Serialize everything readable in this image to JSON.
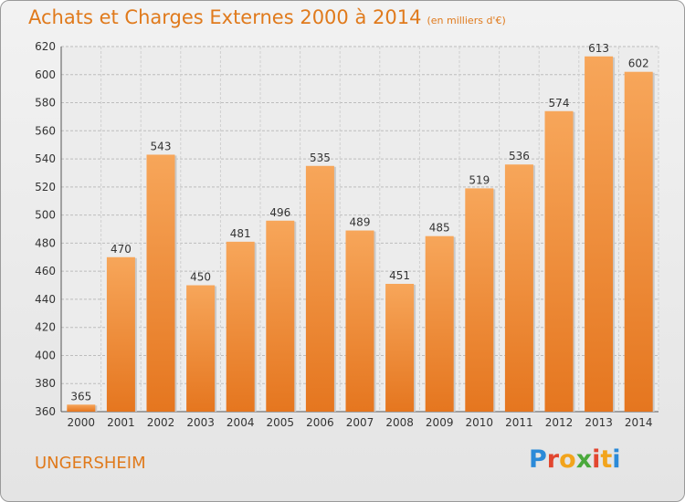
{
  "header": {
    "title": "Achats et Charges Externes 2000 à 2014",
    "subtitle": "(en milliers d'€)"
  },
  "footer": {
    "commune": "UNGERSHEIM",
    "brand_letters": [
      "P",
      "r",
      "o",
      "x",
      "i",
      "t",
      "i"
    ],
    "brand_colors": [
      "#2b8ad8",
      "#e2462f",
      "#f2a41c",
      "#4aa93c",
      "#e2462f",
      "#f2a41c",
      "#2b8ad8"
    ]
  },
  "chart_data": {
    "type": "bar",
    "categories": [
      "2000",
      "2001",
      "2002",
      "2003",
      "2004",
      "2005",
      "2006",
      "2007",
      "2008",
      "2009",
      "2010",
      "2011",
      "2012",
      "2013",
      "2014"
    ],
    "values": [
      365,
      470,
      543,
      450,
      481,
      496,
      535,
      489,
      451,
      485,
      519,
      536,
      574,
      613,
      602
    ],
    "title": "Achats et Charges Externes 2000 à 2014",
    "subtitle": "(en milliers d'€)",
    "xlabel": "",
    "ylabel": "",
    "ylim": [
      360,
      620
    ],
    "yticks": [
      360,
      380,
      400,
      420,
      440,
      460,
      480,
      500,
      520,
      540,
      560,
      580,
      600,
      620
    ],
    "grid": true,
    "legend": "none",
    "bar_color_top": "#f7a65a",
    "bar_color_bottom": "#e5761f"
  }
}
